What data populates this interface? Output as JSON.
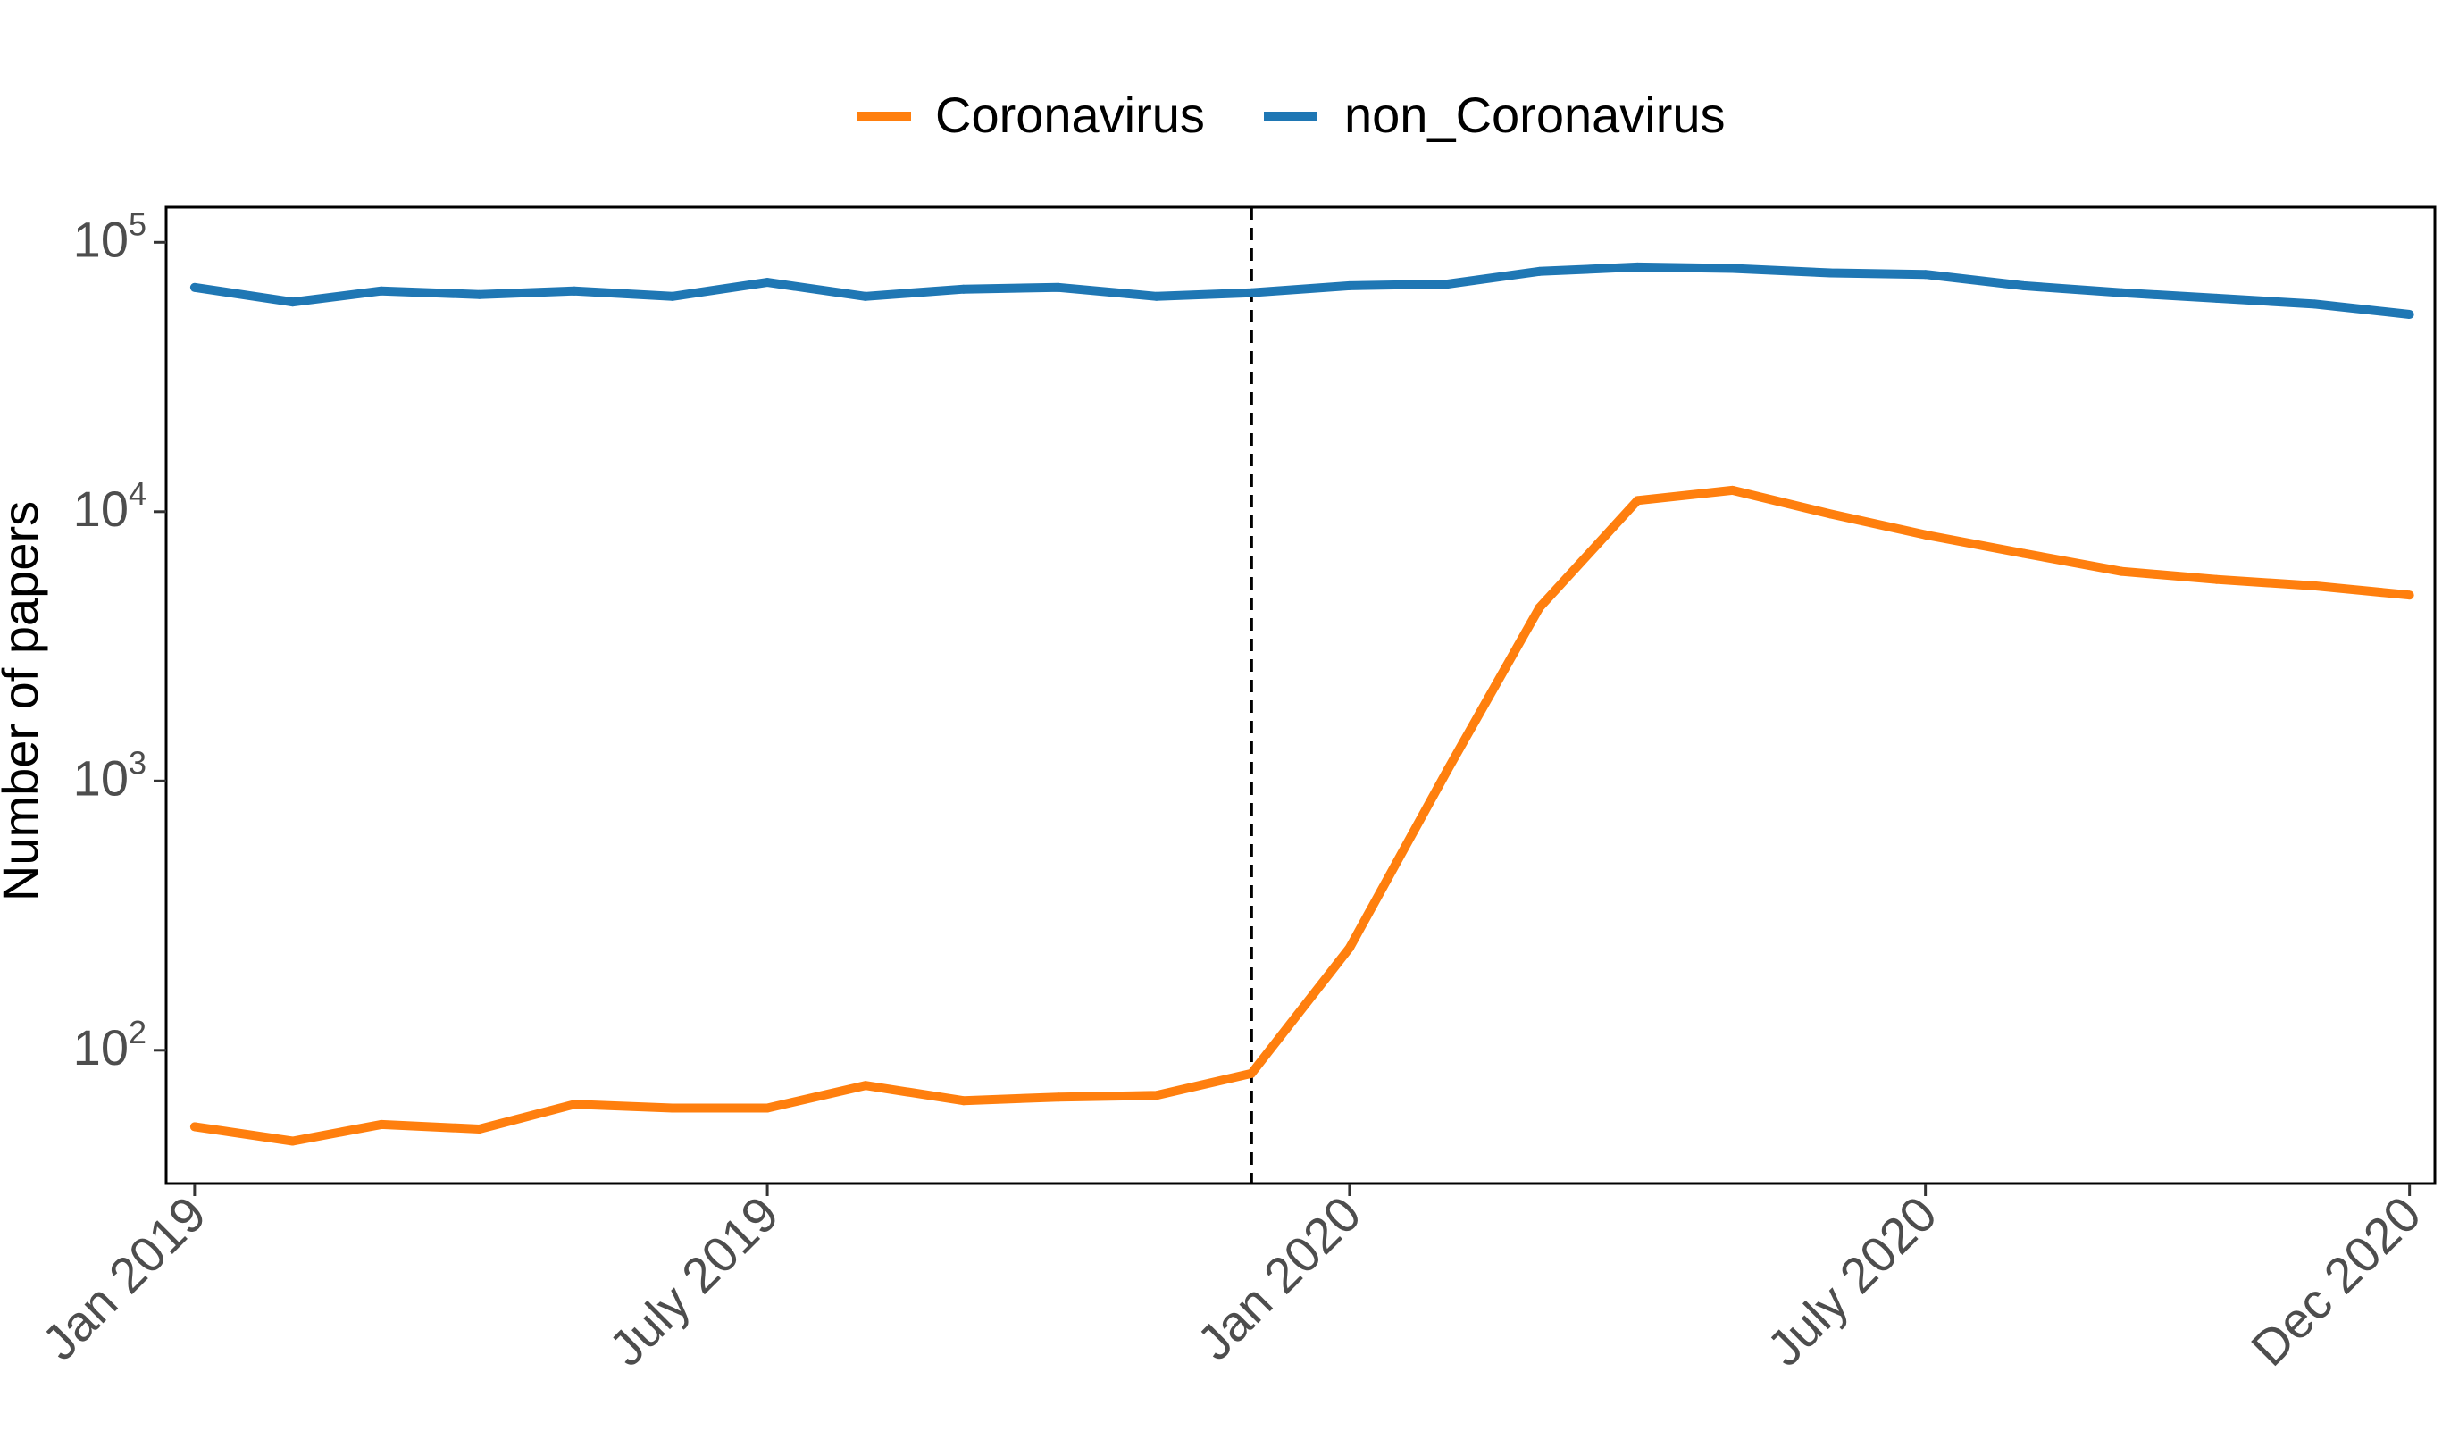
{
  "chart_data": {
    "type": "line",
    "title": "",
    "xlabel": "",
    "ylabel": "Number of papers",
    "y_scale": "log10",
    "ylim": [
      32,
      135000
    ],
    "xlim": [
      "2018-12-23",
      "2020-12-09"
    ],
    "grid": false,
    "legend_position": "top",
    "x": [
      "2019-01",
      "2019-02",
      "2019-03",
      "2019-04",
      "2019-05",
      "2019-06",
      "2019-07",
      "2019-08",
      "2019-09",
      "2019-10",
      "2019-11",
      "2019-12",
      "2020-01",
      "2020-02",
      "2020-03",
      "2020-04",
      "2020-05",
      "2020-06",
      "2020-07",
      "2020-08",
      "2020-09",
      "2020-10",
      "2020-11",
      "2020-12"
    ],
    "x_ticks": [
      {
        "date": "2019-01-01",
        "label": "Jan 2019"
      },
      {
        "date": "2019-07-01",
        "label": "July 2019"
      },
      {
        "date": "2020-01-01",
        "label": "Jan 2020"
      },
      {
        "date": "2020-07-01",
        "label": "July 2020"
      },
      {
        "date": "2020-12-01",
        "label": "Dec 2020"
      }
    ],
    "y_ticks": [
      {
        "value": 100,
        "base": "10",
        "exp": "2"
      },
      {
        "value": 1000,
        "base": "10",
        "exp": "3"
      },
      {
        "value": 10000,
        "base": "10",
        "exp": "4"
      },
      {
        "value": 100000,
        "base": "10",
        "exp": "5"
      }
    ],
    "reference_line": {
      "date": "2019-12-01",
      "style": "dashed",
      "color": "#000000"
    },
    "series": [
      {
        "name": "Coronavirus",
        "color": "#ff7f0e",
        "values": [
          52,
          46,
          53,
          51,
          63,
          61,
          61,
          74,
          65,
          67,
          68,
          82,
          240,
          1100,
          4400,
          11000,
          12000,
          9800,
          8200,
          7000,
          6000,
          5600,
          5300,
          4900
        ]
      },
      {
        "name": "non_Coronavirus",
        "color": "#1f77b4",
        "values": [
          68000,
          60000,
          66000,
          64000,
          66000,
          63000,
          71000,
          63000,
          67000,
          68000,
          63000,
          65000,
          69000,
          70000,
          78000,
          81000,
          80000,
          77000,
          76000,
          69000,
          65000,
          62000,
          59000,
          54000
        ]
      }
    ]
  }
}
